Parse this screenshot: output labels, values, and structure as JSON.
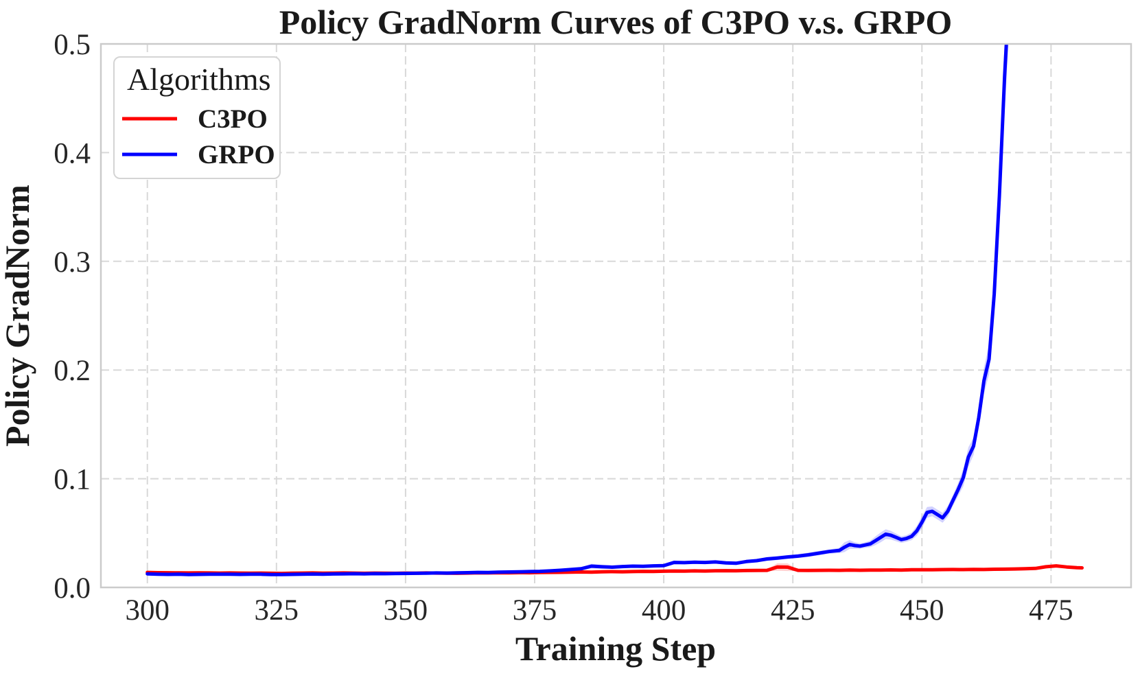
{
  "chart_data": {
    "type": "line",
    "title": "Policy GradNorm Curves of C3PO v.s. GRPO",
    "xlabel": "Training Step",
    "ylabel": "Policy GradNorm",
    "legend": {
      "title": "Algorithms",
      "position": "upper left",
      "entries": [
        "C3PO",
        "GRPO"
      ]
    },
    "axes": {
      "xlim": [
        291,
        490.5
      ],
      "ylim": [
        0,
        0.5
      ],
      "xticks": [
        300,
        325,
        350,
        375,
        400,
        425,
        450,
        475
      ],
      "xtick_labels": [
        "300",
        "325",
        "350",
        "375",
        "400",
        "425",
        "450",
        "475"
      ],
      "yticks": [
        0.0,
        0.1,
        0.2,
        0.3,
        0.4,
        0.5
      ],
      "ytick_labels": [
        "0.0",
        "0.1",
        "0.2",
        "0.3",
        "0.4",
        "0.5"
      ],
      "grid": true,
      "grid_style": "dashed"
    },
    "colors": {
      "grid": "#d8d8d8",
      "spine": "#cbcbcb",
      "text": "#262626",
      "band_opacity": 0.18,
      "background": "#ffffff"
    },
    "series": [
      {
        "name": "C3PO",
        "color": "#ff0000",
        "x": [
          300,
          302,
          304,
          306,
          308,
          310,
          312,
          314,
          316,
          318,
          320,
          322,
          324,
          326,
          328,
          330,
          332,
          334,
          336,
          338,
          340,
          342,
          344,
          346,
          348,
          350,
          352,
          354,
          356,
          358,
          360,
          362,
          364,
          366,
          368,
          370,
          372,
          374,
          376,
          378,
          380,
          382,
          384,
          386,
          388,
          390,
          392,
          394,
          396,
          398,
          400,
          402,
          404,
          406,
          408,
          410,
          412,
          414,
          416,
          418,
          420,
          422,
          424,
          426,
          428,
          430,
          432,
          434,
          436,
          438,
          440,
          442,
          444,
          446,
          448,
          450,
          452,
          454,
          456,
          458,
          460,
          462,
          464,
          466,
          468,
          470,
          472,
          474,
          476,
          478,
          480,
          481
        ],
        "y": [
          0.0138,
          0.0136,
          0.0135,
          0.0134,
          0.0133,
          0.0134,
          0.0133,
          0.0132,
          0.0133,
          0.0132,
          0.0131,
          0.0132,
          0.013,
          0.0129,
          0.0131,
          0.0132,
          0.0133,
          0.0131,
          0.0132,
          0.0133,
          0.0132,
          0.013,
          0.0132,
          0.0131,
          0.013,
          0.0132,
          0.0131,
          0.0133,
          0.0132,
          0.0131,
          0.013,
          0.0132,
          0.0134,
          0.0133,
          0.0135,
          0.0134,
          0.0136,
          0.0135,
          0.0137,
          0.0138,
          0.0139,
          0.014,
          0.0142,
          0.0141,
          0.0143,
          0.0145,
          0.0144,
          0.0146,
          0.0148,
          0.0147,
          0.0149,
          0.0151,
          0.015,
          0.0152,
          0.0151,
          0.0153,
          0.0154,
          0.0153,
          0.0155,
          0.0156,
          0.0157,
          0.0188,
          0.0186,
          0.0157,
          0.0156,
          0.0157,
          0.0158,
          0.0157,
          0.0159,
          0.0158,
          0.016,
          0.0159,
          0.0161,
          0.016,
          0.0162,
          0.0163,
          0.0162,
          0.0164,
          0.0165,
          0.0164,
          0.0166,
          0.0165,
          0.0167,
          0.0168,
          0.017,
          0.0172,
          0.0175,
          0.019,
          0.0198,
          0.0188,
          0.0182,
          0.018
        ],
        "band": [
          0.0008,
          0.0008,
          0.0008,
          0.0008,
          0.0008,
          0.0008,
          0.0008,
          0.0008,
          0.0008,
          0.0008,
          0.0008,
          0.0008,
          0.0008,
          0.0008,
          0.0008,
          0.0008,
          0.0008,
          0.0008,
          0.0008,
          0.0008,
          0.0008,
          0.0008,
          0.0008,
          0.0008,
          0.0008,
          0.0008,
          0.0008,
          0.0008,
          0.0008,
          0.0008,
          0.0008,
          0.0008,
          0.0008,
          0.0008,
          0.0008,
          0.0008,
          0.0008,
          0.0008,
          0.0008,
          0.0008,
          0.0008,
          0.0008,
          0.0008,
          0.0008,
          0.0008,
          0.0008,
          0.0008,
          0.0008,
          0.0008,
          0.0008,
          0.0008,
          0.0008,
          0.0008,
          0.0008,
          0.0008,
          0.0008,
          0.0008,
          0.0008,
          0.0008,
          0.0008,
          0.0008,
          0.0035,
          0.0035,
          0.0008,
          0.0008,
          0.0008,
          0.0008,
          0.0008,
          0.0008,
          0.0008,
          0.0008,
          0.0008,
          0.0008,
          0.0008,
          0.0008,
          0.0008,
          0.0008,
          0.0008,
          0.0008,
          0.0008,
          0.0008,
          0.0008,
          0.0008,
          0.0008,
          0.0008,
          0.0008,
          0.0008,
          0.0012,
          0.0012,
          0.0012,
          0.0008,
          0.0008
        ]
      },
      {
        "name": "GRPO",
        "color": "#0000ff",
        "x": [
          300,
          302,
          304,
          306,
          308,
          310,
          312,
          314,
          316,
          318,
          320,
          322,
          324,
          326,
          328,
          330,
          332,
          334,
          336,
          338,
          340,
          342,
          344,
          346,
          348,
          350,
          352,
          354,
          356,
          358,
          360,
          362,
          364,
          366,
          368,
          370,
          372,
          374,
          376,
          378,
          380,
          382,
          384,
          386,
          388,
          390,
          392,
          394,
          396,
          398,
          400,
          402,
          404,
          406,
          408,
          410,
          412,
          414,
          416,
          418,
          420,
          422,
          424,
          426,
          428,
          430,
          432,
          434,
          435,
          436,
          437,
          438,
          439,
          440,
          441,
          442,
          443,
          444,
          445,
          446,
          447,
          448,
          449,
          450,
          451,
          452,
          453,
          454,
          455,
          456,
          457,
          458,
          459,
          460,
          461,
          462,
          463,
          464,
          465,
          466,
          466.8
        ],
        "y": [
          0.0125,
          0.0122,
          0.012,
          0.0121,
          0.0119,
          0.012,
          0.0121,
          0.0122,
          0.0121,
          0.012,
          0.0122,
          0.0121,
          0.0119,
          0.0118,
          0.012,
          0.0121,
          0.0123,
          0.0122,
          0.0124,
          0.0125,
          0.0126,
          0.0125,
          0.0127,
          0.0126,
          0.0128,
          0.0129,
          0.013,
          0.0131,
          0.0133,
          0.0132,
          0.0134,
          0.0136,
          0.0138,
          0.0137,
          0.014,
          0.0142,
          0.0144,
          0.0146,
          0.0148,
          0.0152,
          0.0158,
          0.0165,
          0.0172,
          0.0196,
          0.019,
          0.0186,
          0.0192,
          0.0196,
          0.0194,
          0.0198,
          0.02,
          0.023,
          0.0228,
          0.0232,
          0.023,
          0.0234,
          0.0226,
          0.0222,
          0.0238,
          0.0246,
          0.0262,
          0.027,
          0.028,
          0.0288,
          0.03,
          0.0315,
          0.033,
          0.034,
          0.037,
          0.0395,
          0.0385,
          0.038,
          0.039,
          0.04,
          0.043,
          0.046,
          0.049,
          0.048,
          0.046,
          0.044,
          0.045,
          0.047,
          0.052,
          0.06,
          0.069,
          0.07,
          0.067,
          0.064,
          0.07,
          0.08,
          0.09,
          0.101,
          0.12,
          0.13,
          0.156,
          0.19,
          0.21,
          0.27,
          0.36,
          0.47,
          0.54
        ],
        "band": [
          0.0008,
          0.0008,
          0.0008,
          0.0008,
          0.0008,
          0.0008,
          0.0008,
          0.0008,
          0.0008,
          0.0008,
          0.0008,
          0.0008,
          0.0008,
          0.0008,
          0.0008,
          0.0008,
          0.0008,
          0.0008,
          0.0008,
          0.0008,
          0.0008,
          0.0008,
          0.0008,
          0.0008,
          0.0008,
          0.0008,
          0.0008,
          0.0008,
          0.0008,
          0.0008,
          0.0008,
          0.0008,
          0.0008,
          0.0008,
          0.0008,
          0.0008,
          0.0008,
          0.0008,
          0.0008,
          0.0008,
          0.001,
          0.0012,
          0.0015,
          0.0022,
          0.0018,
          0.0015,
          0.0015,
          0.0015,
          0.0015,
          0.0015,
          0.0015,
          0.0018,
          0.0015,
          0.0015,
          0.0015,
          0.0015,
          0.0015,
          0.0015,
          0.0015,
          0.0015,
          0.0018,
          0.0018,
          0.0018,
          0.0018,
          0.002,
          0.002,
          0.002,
          0.0025,
          0.0045,
          0.004,
          0.003,
          0.0025,
          0.0025,
          0.003,
          0.004,
          0.0045,
          0.0045,
          0.004,
          0.0035,
          0.003,
          0.003,
          0.0035,
          0.0045,
          0.0055,
          0.005,
          0.0045,
          0.0045,
          0.0045,
          0.005,
          0.005,
          0.006,
          0.008,
          0.009,
          0.008,
          0.01,
          0.012,
          0.014,
          0.018,
          0.025,
          0.033,
          0.038
        ]
      }
    ]
  }
}
